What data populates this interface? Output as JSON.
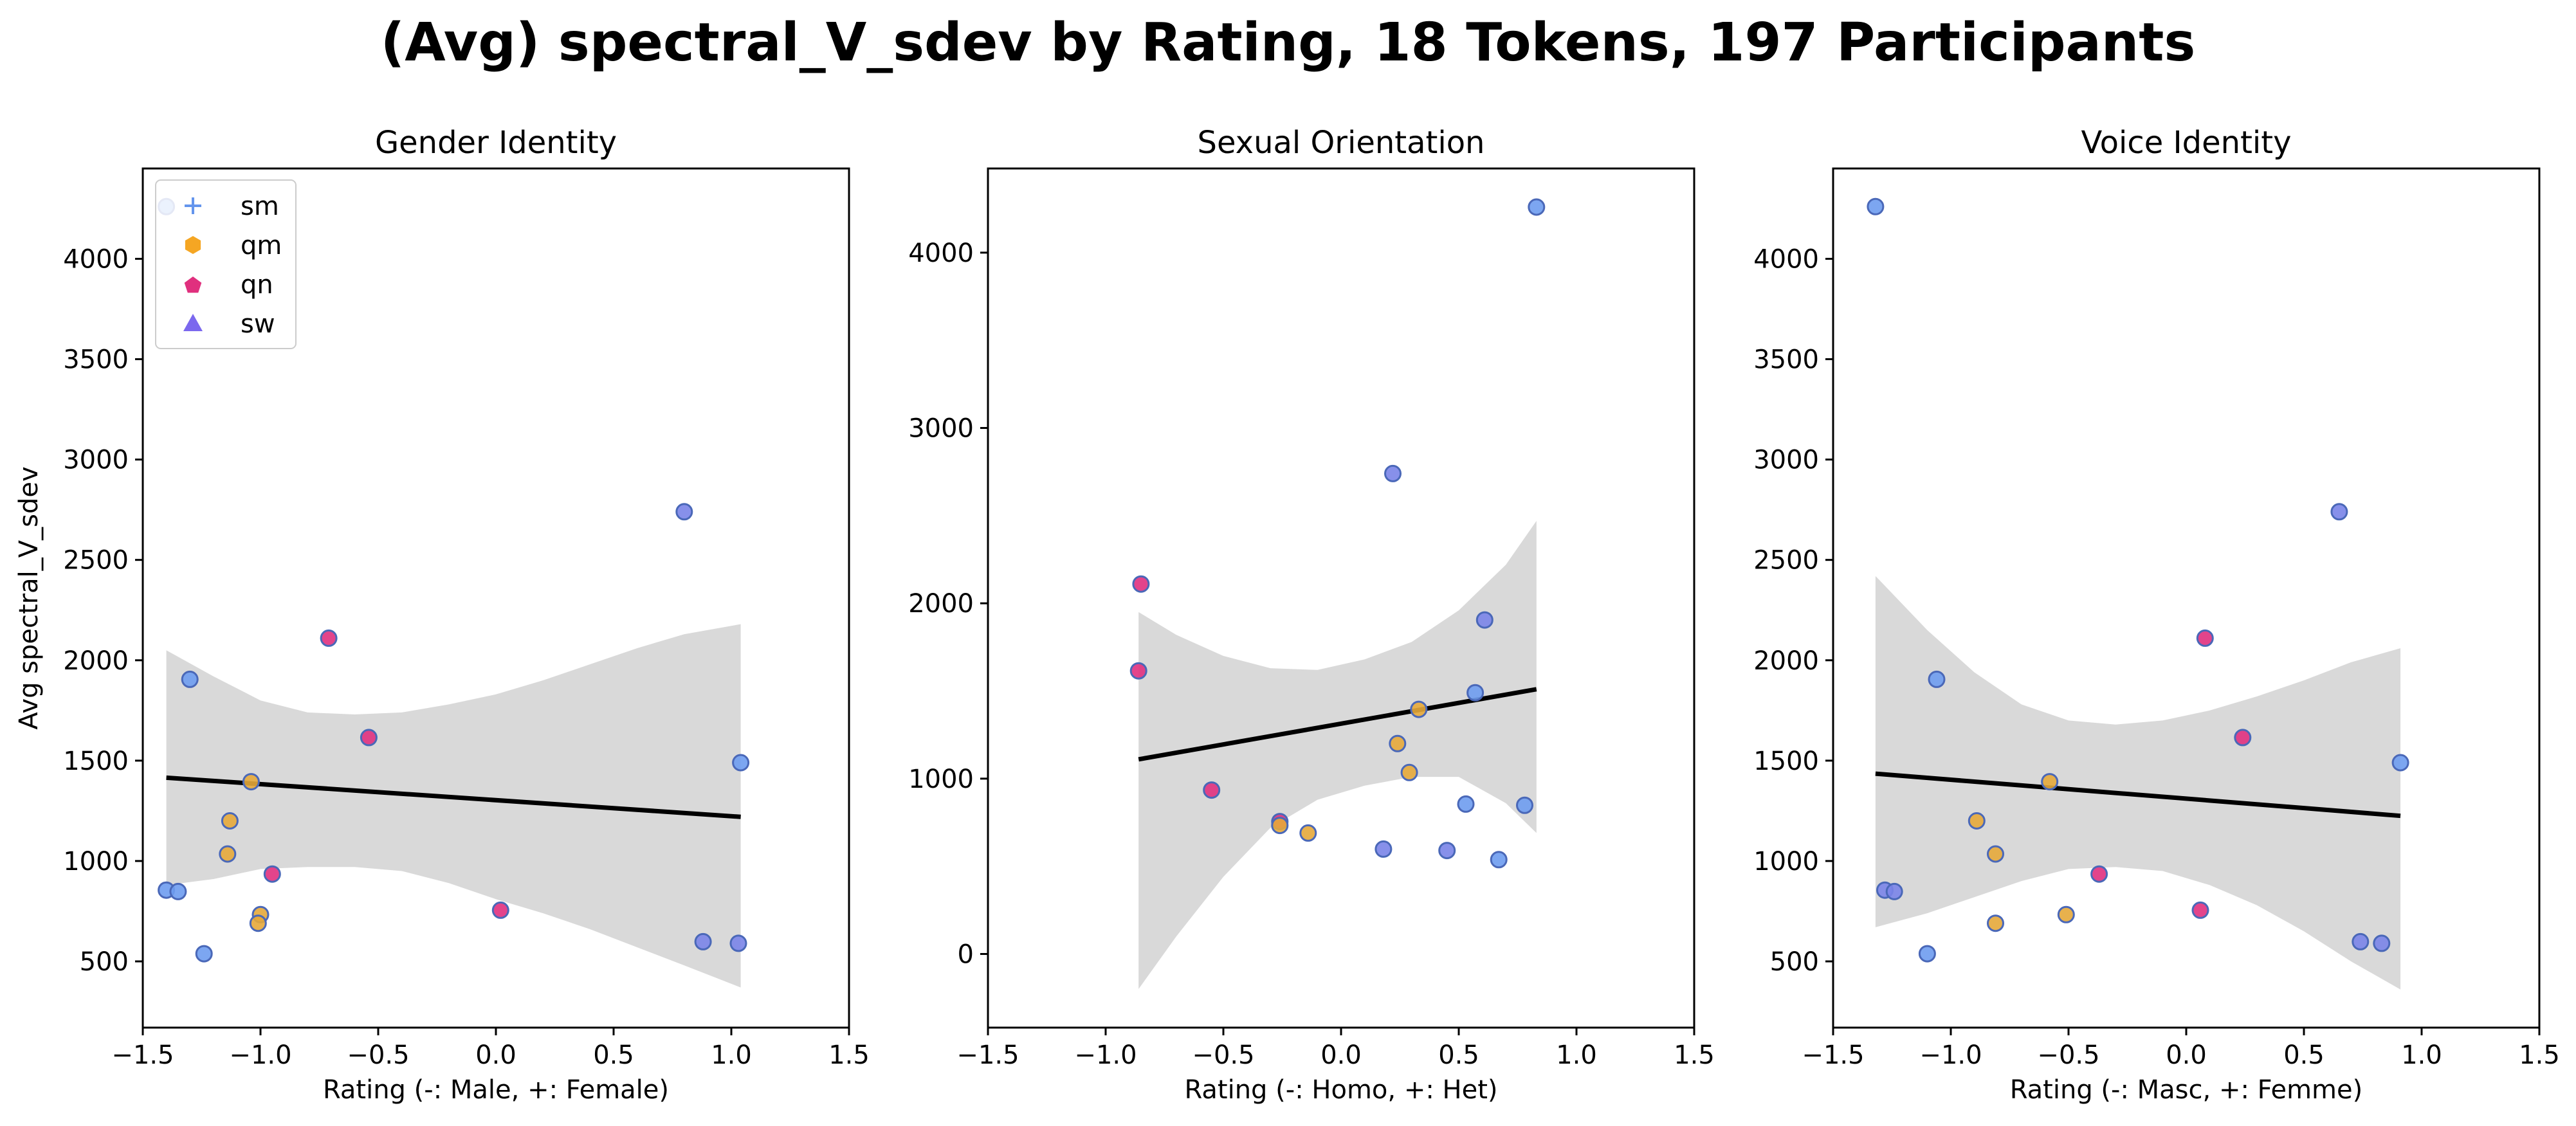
{
  "title": "(Avg) spectral_V_sdev by Rating, 18 Tokens, 197 Participants",
  "legend": {
    "location": "upper-left of first panel",
    "entries": [
      {
        "label": "sm",
        "marker": "plus",
        "color": "#6495ed"
      },
      {
        "label": "qm",
        "marker": "hexagon",
        "color": "#f5a623"
      },
      {
        "label": "qn",
        "marker": "pentagon",
        "color": "#e0307e"
      },
      {
        "label": "sw",
        "marker": "triangle",
        "color": "#7b68ee"
      }
    ]
  },
  "chart_data": [
    {
      "type": "scatter",
      "title": "Gender Identity",
      "xlabel": "Rating (-: Male, +: Female)",
      "ylabel": "Avg spectral_V_sdev",
      "xlim": [
        -1.5,
        1.5
      ],
      "ylim": [
        170,
        4450
      ],
      "xticks": [
        -1.5,
        -1.0,
        -0.5,
        0.0,
        0.5,
        1.0,
        1.5
      ],
      "yticks": [
        500,
        1000,
        1500,
        2000,
        2500,
        3000,
        3500,
        4000
      ],
      "points": [
        {
          "x": -1.4,
          "y": 4260,
          "g": "sm"
        },
        {
          "x": -1.4,
          "y": 855,
          "g": "sm"
        },
        {
          "x": -1.35,
          "y": 848,
          "g": "sm"
        },
        {
          "x": -1.3,
          "y": 1905,
          "g": "sm"
        },
        {
          "x": -1.24,
          "y": 538,
          "g": "sm"
        },
        {
          "x": -1.13,
          "y": 1200,
          "g": "qm"
        },
        {
          "x": -1.14,
          "y": 1035,
          "g": "qm"
        },
        {
          "x": -1.04,
          "y": 1395,
          "g": "qm"
        },
        {
          "x": -1.0,
          "y": 733,
          "g": "qm"
        },
        {
          "x": -1.01,
          "y": 690,
          "g": "qm"
        },
        {
          "x": -0.95,
          "y": 935,
          "g": "qn"
        },
        {
          "x": -0.71,
          "y": 2110,
          "g": "qn"
        },
        {
          "x": -0.54,
          "y": 1615,
          "g": "qn"
        },
        {
          "x": 0.02,
          "y": 755,
          "g": "qn"
        },
        {
          "x": 0.8,
          "y": 2740,
          "g": "sw"
        },
        {
          "x": 0.88,
          "y": 598,
          "g": "sw"
        },
        {
          "x": 1.03,
          "y": 590,
          "g": "sw"
        },
        {
          "x": 1.04,
          "y": 1490,
          "g": "sm"
        }
      ],
      "fit": {
        "x": [
          -1.4,
          1.04
        ],
        "y": [
          1415,
          1220
        ]
      },
      "band": {
        "x": [
          -1.4,
          -1.2,
          -1.0,
          -0.8,
          -0.6,
          -0.4,
          -0.2,
          0.0,
          0.2,
          0.4,
          0.6,
          0.8,
          1.04
        ],
        "upper": [
          2050,
          1920,
          1800,
          1740,
          1730,
          1740,
          1780,
          1830,
          1900,
          1980,
          2060,
          2130,
          2180
        ],
        "lower": [
          880,
          910,
          960,
          970,
          970,
          950,
          890,
          810,
          740,
          660,
          570,
          480,
          370
        ]
      }
    },
    {
      "type": "scatter",
      "title": "Sexual Orientation",
      "xlabel": "Rating (-: Homo, +: Het)",
      "ylabel": "",
      "xlim": [
        -1.5,
        1.5
      ],
      "ylim": [
        -420,
        4480
      ],
      "xticks": [
        -1.5,
        -1.0,
        -0.5,
        0.0,
        0.5,
        1.0,
        1.5
      ],
      "yticks": [
        0,
        1000,
        2000,
        3000,
        4000
      ],
      "points": [
        {
          "x": 0.83,
          "y": 4260,
          "g": "sm"
        },
        {
          "x": 0.22,
          "y": 2740,
          "g": "sw"
        },
        {
          "x": -0.85,
          "y": 2110,
          "g": "qn"
        },
        {
          "x": 0.61,
          "y": 1905,
          "g": "sw"
        },
        {
          "x": -0.86,
          "y": 1615,
          "g": "qn"
        },
        {
          "x": 0.57,
          "y": 1490,
          "g": "sm"
        },
        {
          "x": 0.33,
          "y": 1395,
          "g": "qm"
        },
        {
          "x": 0.24,
          "y": 1200,
          "g": "qm"
        },
        {
          "x": 0.29,
          "y": 1035,
          "g": "qm"
        },
        {
          "x": -0.55,
          "y": 935,
          "g": "qn"
        },
        {
          "x": 0.53,
          "y": 855,
          "g": "sm"
        },
        {
          "x": 0.78,
          "y": 848,
          "g": "sm"
        },
        {
          "x": -0.26,
          "y": 755,
          "g": "qn"
        },
        {
          "x": -0.26,
          "y": 733,
          "g": "qm"
        },
        {
          "x": -0.14,
          "y": 690,
          "g": "qm"
        },
        {
          "x": 0.18,
          "y": 598,
          "g": "sw"
        },
        {
          "x": 0.45,
          "y": 590,
          "g": "sw"
        },
        {
          "x": 0.67,
          "y": 538,
          "g": "sm"
        }
      ],
      "fit": {
        "x": [
          -0.86,
          0.83
        ],
        "y": [
          1110,
          1510
        ]
      },
      "band": {
        "x": [
          -0.86,
          -0.7,
          -0.5,
          -0.3,
          -0.1,
          0.1,
          0.3,
          0.5,
          0.7,
          0.83
        ],
        "upper": [
          1950,
          1820,
          1700,
          1630,
          1620,
          1680,
          1780,
          1960,
          2220,
          2470
        ],
        "lower": [
          -200,
          100,
          440,
          720,
          880,
          960,
          1010,
          1010,
          860,
          690
        ]
      }
    },
    {
      "type": "scatter",
      "title": "Voice Identity",
      "xlabel": "Rating (-: Masc, +: Femme)",
      "ylabel": "",
      "xlim": [
        -1.5,
        1.5
      ],
      "ylim": [
        170,
        4450
      ],
      "xticks": [
        -1.5,
        -1.0,
        -0.5,
        0.0,
        0.5,
        1.0,
        1.5
      ],
      "yticks": [
        500,
        1000,
        1500,
        2000,
        2500,
        3000,
        3500,
        4000
      ],
      "points": [
        {
          "x": -1.32,
          "y": 4260,
          "g": "sm"
        },
        {
          "x": 0.65,
          "y": 2740,
          "g": "sw"
        },
        {
          "x": 0.08,
          "y": 2110,
          "g": "qn"
        },
        {
          "x": -1.06,
          "y": 1905,
          "g": "sm"
        },
        {
          "x": 0.24,
          "y": 1615,
          "g": "qn"
        },
        {
          "x": 0.91,
          "y": 1490,
          "g": "sm"
        },
        {
          "x": -0.58,
          "y": 1395,
          "g": "qm"
        },
        {
          "x": -0.89,
          "y": 1200,
          "g": "qm"
        },
        {
          "x": -0.81,
          "y": 1035,
          "g": "qm"
        },
        {
          "x": -0.37,
          "y": 935,
          "g": "qn"
        },
        {
          "x": -1.28,
          "y": 855,
          "g": "sw"
        },
        {
          "x": -1.24,
          "y": 848,
          "g": "sw"
        },
        {
          "x": 0.06,
          "y": 755,
          "g": "qn"
        },
        {
          "x": -0.51,
          "y": 733,
          "g": "qm"
        },
        {
          "x": -0.81,
          "y": 690,
          "g": "qm"
        },
        {
          "x": 0.74,
          "y": 598,
          "g": "sw"
        },
        {
          "x": 0.83,
          "y": 590,
          "g": "sw"
        },
        {
          "x": -1.1,
          "y": 538,
          "g": "sm"
        }
      ],
      "fit": {
        "x": [
          -1.32,
          0.91
        ],
        "y": [
          1435,
          1225
        ]
      },
      "band": {
        "x": [
          -1.32,
          -1.1,
          -0.9,
          -0.7,
          -0.5,
          -0.3,
          -0.1,
          0.1,
          0.3,
          0.5,
          0.7,
          0.91
        ],
        "upper": [
          2420,
          2150,
          1940,
          1780,
          1700,
          1680,
          1700,
          1750,
          1820,
          1900,
          1990,
          2060
        ],
        "lower": [
          670,
          740,
          820,
          900,
          960,
          970,
          950,
          880,
          780,
          650,
          500,
          360
        ]
      }
    }
  ]
}
